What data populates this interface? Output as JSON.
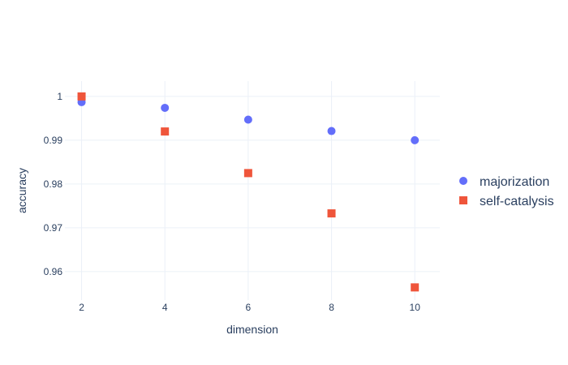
{
  "chart_data": {
    "type": "scatter",
    "title": "",
    "xlabel": "dimension",
    "ylabel": "accuracy",
    "xlim": [
      1.6,
      10.6
    ],
    "ylim": [
      0.9535,
      1.0035
    ],
    "xticks": [
      2,
      4,
      6,
      8,
      10
    ],
    "xtick_labels": [
      "2",
      "4",
      "6",
      "8",
      "10"
    ],
    "yticks": [
      0.96,
      0.97,
      0.98,
      0.99,
      1.0
    ],
    "ytick_labels": [
      "0.96",
      "0.97",
      "0.98",
      "0.99",
      "1"
    ],
    "grid": true,
    "legend_position": "right",
    "x": [
      2,
      4,
      6,
      8,
      10
    ],
    "series": [
      {
        "name": "majorization",
        "marker": "circle",
        "color": "#636efa",
        "values": [
          0.9987,
          0.9974,
          0.9947,
          0.9921,
          0.99
        ]
      },
      {
        "name": "self-catalysis",
        "marker": "square",
        "color": "#ef553b",
        "values": [
          1.0,
          0.992,
          0.9825,
          0.9733,
          0.9564
        ]
      }
    ]
  }
}
